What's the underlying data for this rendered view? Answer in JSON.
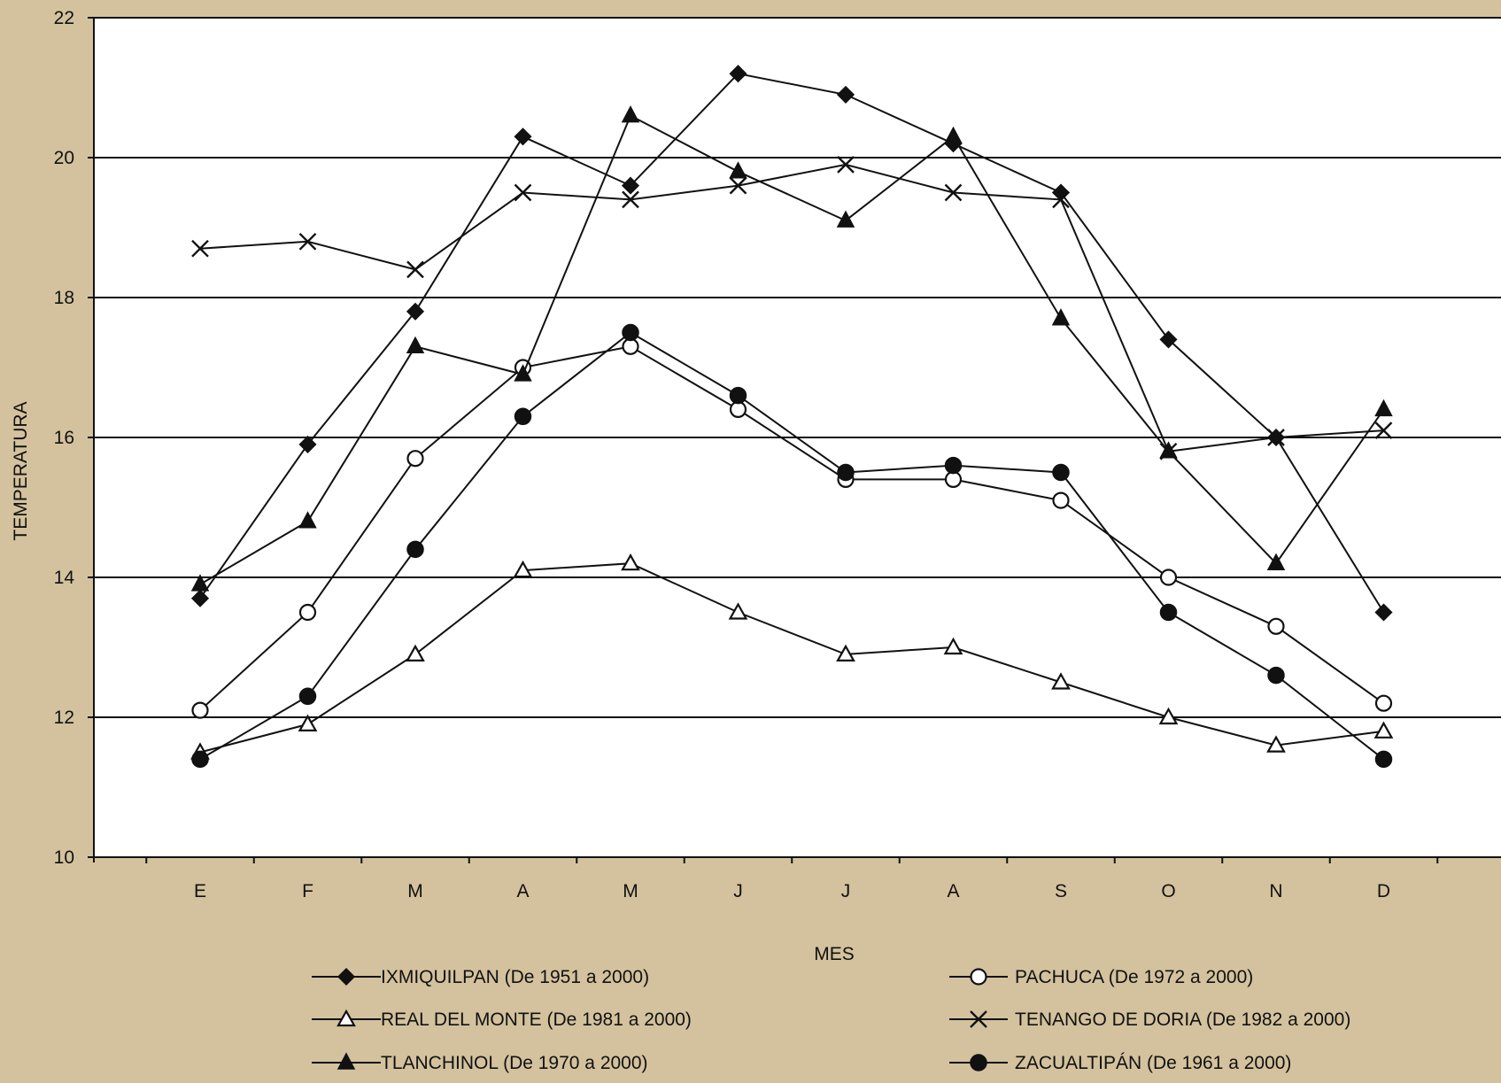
{
  "chart_data": {
    "type": "line",
    "xlabel": "MES",
    "ylabel": "TEMPERATURA",
    "ylim": [
      10,
      22
    ],
    "yticks": [
      10,
      12,
      14,
      16,
      18,
      20,
      22
    ],
    "grid": "horizontal major gridlines",
    "legend_position": "bottom",
    "categories": [
      "E",
      "F",
      "M",
      "A",
      "M",
      "J",
      "J",
      "A",
      "S",
      "O",
      "N",
      "D"
    ],
    "series": [
      {
        "name": "IXMIQUILPAN (De 1951 a 2000)",
        "marker": "diamond-filled",
        "values": [
          13.7,
          15.9,
          17.8,
          20.3,
          19.6,
          21.2,
          20.9,
          20.2,
          19.5,
          17.4,
          16.0,
          13.5
        ]
      },
      {
        "name": "PACHUCA (De 1972 a 2000)",
        "marker": "circle-open",
        "values": [
          12.1,
          13.5,
          15.7,
          17.0,
          17.3,
          16.4,
          15.4,
          15.4,
          15.1,
          14.0,
          13.3,
          12.2
        ]
      },
      {
        "name": "REAL DEL MONTE (De 1981 a 2000)",
        "marker": "triangle-open",
        "values": [
          11.5,
          11.9,
          12.9,
          14.1,
          14.2,
          13.5,
          12.9,
          13.0,
          12.5,
          12.0,
          11.6,
          11.8
        ]
      },
      {
        "name": "TENANGO DE DORIA (De 1982 a 2000)",
        "marker": "x",
        "values": [
          18.7,
          18.8,
          18.4,
          19.5,
          19.4,
          19.6,
          19.9,
          19.5,
          19.4,
          15.8,
          16.0,
          16.1
        ]
      },
      {
        "name": "TLANCHINOL (De 1970 a 2000)",
        "marker": "triangle-filled",
        "values": [
          13.9,
          14.8,
          17.3,
          16.9,
          20.6,
          19.8,
          19.1,
          20.3,
          17.7,
          15.8,
          14.2,
          16.4
        ]
      },
      {
        "name": "ZACUALTIPÁN (De 1961 a 2000)",
        "marker": "circle-filled",
        "values": [
          11.4,
          12.3,
          14.4,
          16.3,
          17.5,
          16.6,
          15.5,
          15.6,
          15.5,
          13.5,
          12.6,
          11.4
        ]
      }
    ]
  },
  "colors": {
    "background": "#d3c29d",
    "plot_area": "#ffffff",
    "lines": "#111111"
  }
}
